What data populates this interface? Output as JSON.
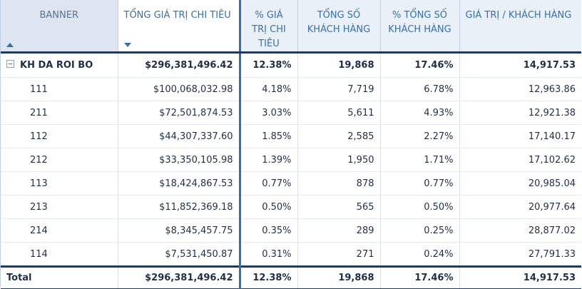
{
  "headers": {
    "banner": "BANNER",
    "tong_gia_tri": "TỔNG GIÁ TRỊ CHI TIÊU",
    "pct_gia_tri": "% GIÁ TRỊ CHI TIÊU",
    "tong_so_kh": "TỔNG SỐ KHÁCH HÀNG",
    "pct_tong_so_kh": "% TỔNG SỐ KHÁCH HÀNG",
    "gia_tri_kh": "GIÁ TRỊ / KHÁCH HÀNG"
  },
  "group": {
    "label": "KH DA ROI BO",
    "tong_gia_tri": "$296,381,496.42",
    "pct_gia_tri": "12.38%",
    "tong_so_kh": "19,868",
    "pct_tong_so_kh": "17.46%",
    "gia_tri_kh": "14,917.53"
  },
  "rows": [
    {
      "label": "111",
      "tong_gia_tri": "$100,068,032.98",
      "pct_gia_tri": "4.18%",
      "tong_so_kh": "7,719",
      "pct_tong_so_kh": "6.78%",
      "gia_tri_kh": "12,963.86"
    },
    {
      "label": "211",
      "tong_gia_tri": "$72,501,874.53",
      "pct_gia_tri": "3.03%",
      "tong_so_kh": "5,611",
      "pct_tong_so_kh": "4.93%",
      "gia_tri_kh": "12,921.38"
    },
    {
      "label": "112",
      "tong_gia_tri": "$44,307,337.60",
      "pct_gia_tri": "1.85%",
      "tong_so_kh": "2,585",
      "pct_tong_so_kh": "2.27%",
      "gia_tri_kh": "17,140.17"
    },
    {
      "label": "212",
      "tong_gia_tri": "$33,350,105.98",
      "pct_gia_tri": "1.39%",
      "tong_so_kh": "1,950",
      "pct_tong_so_kh": "1.71%",
      "gia_tri_kh": "17,102.62"
    },
    {
      "label": "113",
      "tong_gia_tri": "$18,424,867.53",
      "pct_gia_tri": "0.77%",
      "tong_so_kh": "878",
      "pct_tong_so_kh": "0.77%",
      "gia_tri_kh": "20,985.04"
    },
    {
      "label": "213",
      "tong_gia_tri": "$11,852,369.18",
      "pct_gia_tri": "0.50%",
      "tong_so_kh": "565",
      "pct_tong_so_kh": "0.50%",
      "gia_tri_kh": "20,977.64"
    },
    {
      "label": "214",
      "tong_gia_tri": "$8,345,457.75",
      "pct_gia_tri": "0.35%",
      "tong_so_kh": "289",
      "pct_tong_so_kh": "0.25%",
      "gia_tri_kh": "28,877.02"
    },
    {
      "label": "114",
      "tong_gia_tri": "$7,531,450.87",
      "pct_gia_tri": "0.31%",
      "tong_so_kh": "271",
      "pct_tong_so_kh": "0.24%",
      "gia_tri_kh": "27,791.33"
    }
  ],
  "total": {
    "label": "Total",
    "tong_gia_tri": "$296,381,496.42",
    "pct_gia_tri": "12.38%",
    "tong_so_kh": "19,868",
    "pct_tong_so_kh": "17.46%",
    "gia_tri_kh": "14,917.53"
  },
  "icons": {
    "banner_sort": "sort-ascending-icon",
    "tong_sort": "sort-descending-icon",
    "group_toggle": "collapse-icon"
  },
  "colors": {
    "header_bg": "#e9f0f8",
    "header_text": "#3a6ea5",
    "border_dark": "#1f3b63"
  }
}
